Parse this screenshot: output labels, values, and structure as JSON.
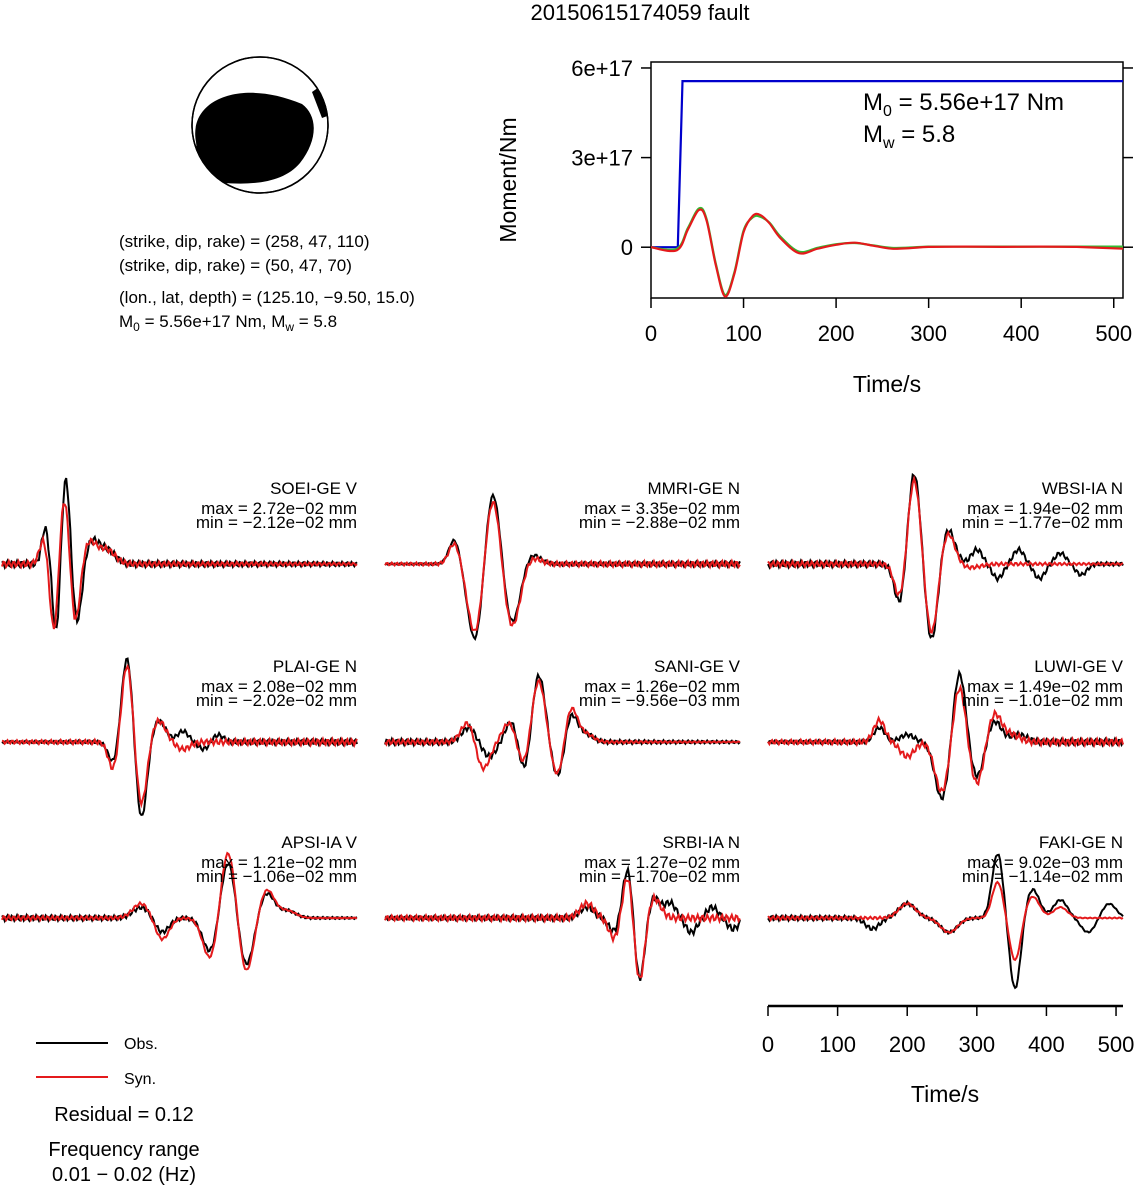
{
  "title": "20150615174059 fault",
  "colors": {
    "obs": "#000000",
    "syn": "#e41a1c",
    "moment": "#0000cc",
    "moment_green": "#33bb33",
    "axis": "#000000"
  },
  "mechanism": {
    "line1": "(strike, dip, rake) = (258, 47, 110)",
    "line2": "(strike, dip, rake) = (50, 47, 70)",
    "line3": "(lon., lat, depth) = (125.10, −9.50, 15.0)",
    "m0_prefix": "M",
    "m0_sub": "0",
    "m0_text": " = 5.56e+17 Nm, M",
    "mw_sub": "w",
    "mw_text": " = 5.8"
  },
  "chart_data": [
    {
      "type": "line",
      "name": "moment-rate",
      "xlabel": "Time/s",
      "ylabel": "Moment/Nm",
      "xlim": [
        0,
        510
      ],
      "ylim": [
        -1.7e+17,
        6.2e+17
      ],
      "x_ticks": [
        "0",
        "100",
        "200",
        "300",
        "400",
        "500"
      ],
      "y_ticks": [
        "6e+17",
        "3e+17",
        "0"
      ],
      "annotation": {
        "m0_prefix": "M",
        "m0_sub": "0",
        "m0_text": " = 5.56e+17 Nm",
        "mw_prefix": "M",
        "mw_sub": "w",
        "mw_text": " = 5.8"
      },
      "series": [
        {
          "color": "#0000cc",
          "x": [
            0,
            29,
            34,
            510
          ],
          "y": [
            0,
            0,
            5.56e+17,
            5.56e+17
          ]
        },
        {
          "color": "#e41a1c",
          "x": [
            0,
            28,
            40,
            52,
            60,
            70,
            80,
            90,
            100,
            110,
            118,
            128,
            140,
            160,
            180,
            200,
            220,
            240,
            260,
            280,
            300,
            340,
            380,
            420,
            460,
            510
          ],
          "y": [
            0,
            -1e+16,
            6e+16,
            1.25e+17,
            9e+16,
            -6e+16,
            -1.65e+17,
            -9e+16,
            5e+16,
            1.05e+17,
            1.08e+17,
            8e+16,
            3e+16,
            -2e+16,
            -5000000000000000.0,
            8000000000000000.0,
            1.5e+16,
            5000000000000000.0,
            -5000000000000000.0,
            -3000000000000000.0,
            1000000000000000.0,
            2000000000000000.0,
            1000000000000000.0,
            2000000000000000.0,
            1000000000000000.0,
            -5000000000000000.0
          ]
        },
        {
          "color": "#33bb33",
          "x": [
            0,
            28,
            40,
            52,
            60,
            70,
            80,
            90,
            100,
            110,
            118,
            128,
            140,
            160,
            180,
            200,
            220,
            240,
            260,
            280,
            300,
            340,
            380,
            420,
            460,
            510
          ],
          "y": [
            0,
            -5000000000000000.0,
            6.5e+16,
            1.3e+17,
            9.5e+16,
            -5.5e+16,
            -1.6e+17,
            -8.5e+16,
            5.5e+16,
            1e+17,
            1.02e+17,
            8.2e+16,
            3.5e+16,
            -1.5e+16,
            -2000000000000000.0,
            1e+16,
            1.4e+16,
            6000000000000000.0,
            -2000000000000000.0,
            -1000000000000000.0,
            2000000000000000.0,
            2000000000000000.0,
            2000000000000000.0,
            2000000000000000.0,
            2000000000000000.0,
            2000000000000000.0
          ]
        }
      ]
    },
    {
      "type": "line",
      "name": "waveform-grid",
      "xlabel": "Time/s",
      "xlim": [
        0,
        510
      ],
      "x_ticks": [
        "0",
        "100",
        "200",
        "300",
        "400",
        "500"
      ],
      "series": [
        {
          "station": "SOEI-GE V",
          "max": "max = 2.72e−02 mm",
          "min": "min = −2.12e−02 mm",
          "events": [
            [
              60,
              0.35,
              6
            ],
            [
              75,
              -1.0,
              6
            ],
            [
              90,
              1.0,
              7
            ],
            [
              105,
              -0.9,
              7
            ],
            [
              125,
              0.3,
              10
            ],
            [
              150,
              0.2,
              12
            ]
          ],
          "obs_events": [
            [
              62,
              0.5,
              5
            ],
            [
              78,
              -1.0,
              5
            ],
            [
              92,
              1.25,
              6
            ],
            [
              108,
              -0.85,
              7
            ],
            [
              128,
              0.3,
              10
            ],
            [
              150,
              0.2,
              12
            ]
          ]
        },
        {
          "station": "MMRI-GE N",
          "max": "max = 3.35e−02 mm",
          "min": "min = −2.88e−02 mm",
          "events": [
            [
              100,
              0.3,
              8
            ],
            [
              130,
              -1.0,
              11
            ],
            [
              155,
              1.0,
              11
            ],
            [
              182,
              -0.9,
              12
            ],
            [
              210,
              0.1,
              12
            ]
          ],
          "obs_events": [
            [
              100,
              0.35,
              8
            ],
            [
              130,
              -1.1,
              11
            ],
            [
              155,
              1.1,
              11
            ],
            [
              182,
              -0.85,
              12
            ],
            [
              210,
              0.15,
              12
            ]
          ]
        },
        {
          "station": "WBSI-IA N",
          "max": "max = 1.94e−02 mm",
          "min": "min = −1.77e−02 mm",
          "events": [
            [
              190,
              -0.5,
              8
            ],
            [
              210,
              1.2,
              9
            ],
            [
              235,
              -1.0,
              9
            ],
            [
              258,
              0.45,
              10
            ],
            [
              290,
              -0.05,
              15
            ]
          ],
          "obs_events": [
            [
              190,
              -0.6,
              8
            ],
            [
              210,
              1.3,
              9
            ],
            [
              235,
              -1.1,
              9
            ],
            [
              258,
              0.5,
              10
            ],
            [
              300,
              0.2,
              8
            ],
            [
              330,
              -0.2,
              8
            ],
            [
              360,
              0.2,
              8
            ],
            [
              390,
              -0.2,
              8
            ],
            [
              420,
              0.15,
              8
            ],
            [
              450,
              -0.15,
              8
            ]
          ]
        },
        {
          "station": "PLAI-GE N",
          "max": "max = 2.08e−02 mm",
          "min": "min = −2.02e−02 mm",
          "events": [
            [
              160,
              -0.4,
              7
            ],
            [
              180,
              1.1,
              8
            ],
            [
              200,
              -0.9,
              8
            ],
            [
              225,
              0.3,
              10
            ],
            [
              260,
              -0.1,
              10
            ]
          ],
          "obs_events": [
            [
              160,
              -0.3,
              7
            ],
            [
              180,
              1.2,
              8
            ],
            [
              200,
              -1.1,
              8
            ],
            [
              225,
              0.3,
              10
            ],
            [
              260,
              0.15,
              8
            ],
            [
              290,
              -0.1,
              8
            ],
            [
              310,
              0.1,
              8
            ]
          ]
        },
        {
          "station": "SANI-GE V",
          "max": "max = 1.26e−02 mm",
          "min": "min = −9.56e−03 mm",
          "events": [
            [
              120,
              0.3,
              10
            ],
            [
              140,
              -0.4,
              10
            ],
            [
              180,
              0.3,
              10
            ],
            [
              200,
              -0.4,
              10
            ],
            [
              220,
              0.9,
              10
            ],
            [
              250,
              -0.6,
              10
            ],
            [
              265,
              0.6,
              10
            ],
            [
              290,
              0.1,
              10
            ]
          ],
          "obs_events": [
            [
              120,
              0.2,
              10
            ],
            [
              150,
              -0.2,
              10
            ],
            [
              185,
              0.4,
              10
            ],
            [
              200,
              -0.6,
              10
            ],
            [
              220,
              1.0,
              10
            ],
            [
              250,
              -0.6,
              10
            ],
            [
              265,
              0.5,
              10
            ],
            [
              290,
              0.1,
              10
            ]
          ]
        },
        {
          "station": "LUWI-GE V",
          "max": "max = 1.49e−02 mm",
          "min": "min = −1.01e−02 mm",
          "events": [
            [
              160,
              0.3,
              8
            ],
            [
              200,
              -0.2,
              10
            ],
            [
              250,
              -0.7,
              10
            ],
            [
              275,
              0.8,
              9
            ],
            [
              300,
              -0.6,
              10
            ],
            [
              325,
              0.4,
              10
            ],
            [
              350,
              0.1,
              12
            ]
          ],
          "obs_events": [
            [
              160,
              0.2,
              8
            ],
            [
              200,
              0.1,
              10
            ],
            [
              250,
              -0.8,
              10
            ],
            [
              275,
              1.0,
              9
            ],
            [
              300,
              -0.5,
              10
            ],
            [
              325,
              0.3,
              10
            ],
            [
              360,
              0.1,
              12
            ]
          ]
        },
        {
          "station": "APSI-IA V",
          "max": "max = 1.21e−02 mm",
          "min": "min = −1.06e−02 mm",
          "events": [
            [
              200,
              0.2,
              12
            ],
            [
              230,
              -0.3,
              10
            ],
            [
              300,
              -0.6,
              11
            ],
            [
              325,
              1.0,
              11
            ],
            [
              350,
              -0.8,
              11
            ],
            [
              380,
              0.4,
              11
            ],
            [
              410,
              0.1,
              12
            ]
          ],
          "obs_events": [
            [
              200,
              0.15,
              12
            ],
            [
              230,
              -0.2,
              10
            ],
            [
              300,
              -0.5,
              11
            ],
            [
              325,
              0.85,
              11
            ],
            [
              350,
              -0.7,
              11
            ],
            [
              380,
              0.35,
              11
            ],
            [
              410,
              0.1,
              12
            ]
          ]
        },
        {
          "station": "SRBI-IA N",
          "max": "max = 1.27e−02 mm",
          "min": "min = −1.70e−02 mm",
          "events": [
            [
              290,
              0.2,
              10
            ],
            [
              330,
              -0.3,
              8
            ],
            [
              350,
              0.7,
              8
            ],
            [
              365,
              -1.0,
              8
            ],
            [
              385,
              0.3,
              10
            ]
          ],
          "obs_events": [
            [
              290,
              0.15,
              10
            ],
            [
              330,
              -0.2,
              8
            ],
            [
              350,
              0.8,
              8
            ],
            [
              365,
              -1.0,
              8
            ],
            [
              385,
              0.3,
              10
            ],
            [
              410,
              0.2,
              8
            ],
            [
              440,
              -0.2,
              8
            ],
            [
              470,
              0.15,
              8
            ],
            [
              500,
              -0.15,
              8
            ]
          ]
        },
        {
          "station": "FAKI-GE N",
          "max": "max = 9.02e−03 mm",
          "min": "min = −1.14e−02 mm",
          "events": [
            [
              200,
              0.2,
              12
            ],
            [
              260,
              -0.2,
              12
            ],
            [
              330,
              0.5,
              8
            ],
            [
              355,
              -0.6,
              8
            ],
            [
              380,
              0.3,
              10
            ],
            [
              420,
              0.15,
              10
            ]
          ],
          "obs_events": [
            [
              150,
              -0.15,
              10
            ],
            [
              200,
              0.2,
              12
            ],
            [
              260,
              -0.2,
              12
            ],
            [
              330,
              0.9,
              8
            ],
            [
              355,
              -1.0,
              8
            ],
            [
              380,
              0.4,
              10
            ],
            [
              420,
              0.25,
              10
            ],
            [
              460,
              -0.2,
              10
            ],
            [
              490,
              0.2,
              10
            ]
          ]
        }
      ]
    }
  ],
  "legend": {
    "obs": "Obs.",
    "syn": "Syn."
  },
  "footer": {
    "residual": "Residual = 0.12",
    "freq_label": "Frequency range",
    "freq_value": "0.01 − 0.02 (Hz)"
  }
}
